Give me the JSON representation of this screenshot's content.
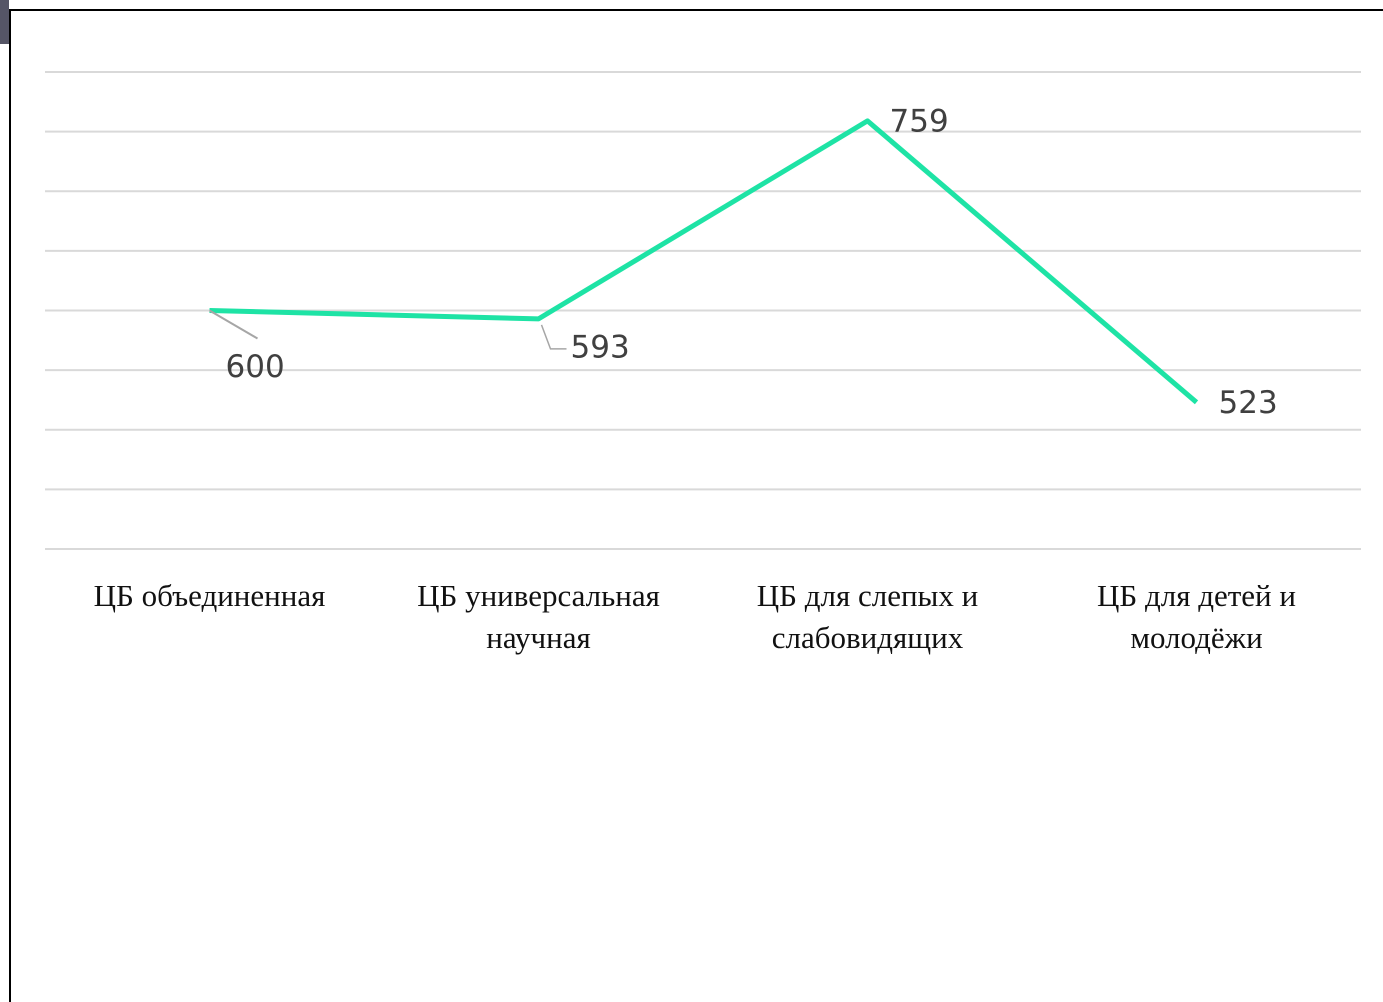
{
  "chart_data": {
    "type": "line",
    "categories": [
      "ЦБ объединенная",
      "ЦБ универсальная научная",
      "ЦБ для слепых и слабовидящих",
      "ЦБ для детей и молодёжи"
    ],
    "series": [
      {
        "color": "#1ee3a5",
        "values": [
          600,
          593,
          759,
          523
        ]
      }
    ],
    "ylim": [
      400,
      800
    ],
    "yticks": [
      400,
      450,
      500,
      550,
      600,
      650,
      700,
      750,
      800
    ],
    "grid": true
  }
}
